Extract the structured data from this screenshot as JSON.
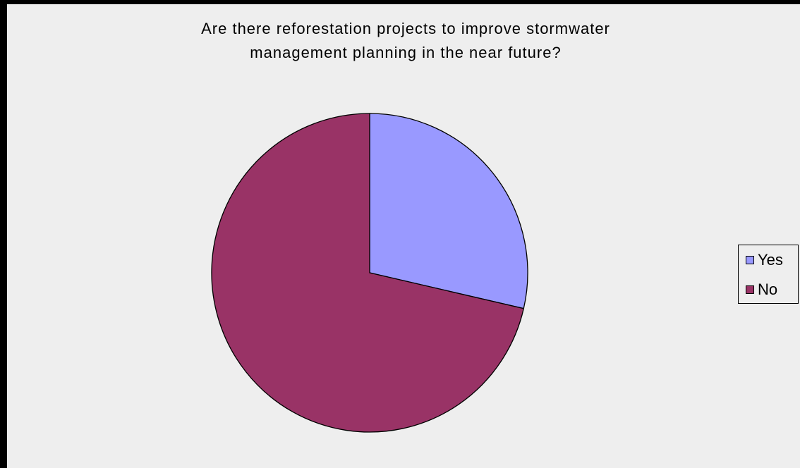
{
  "chart_data": {
    "type": "pie",
    "title_lines": [
      "Are there reforestation projects to improve stormwater",
      "management planning in the near future?"
    ],
    "slices": [
      {
        "name": "Yes",
        "value": 28.6,
        "color": "#9999ff"
      },
      {
        "name": "No",
        "value": 71.4,
        "color": "#993366"
      }
    ],
    "legend_position": "right"
  },
  "legend": {
    "yes_label": "Yes",
    "no_label": "No"
  }
}
